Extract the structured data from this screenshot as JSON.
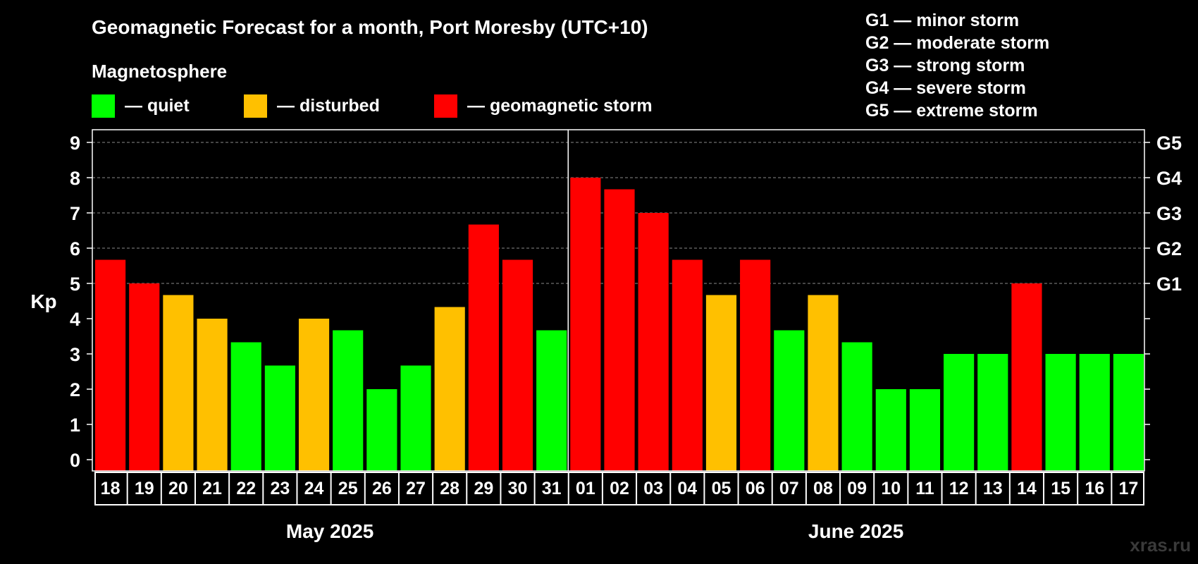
{
  "chart_data": {
    "type": "bar",
    "title": "Geomagnetic Forecast for a month, Port Moresby (UTC+10)",
    "ylabel": "Kp",
    "ylim": [
      0,
      9
    ],
    "yticks": [
      "0",
      "1",
      "2",
      "3",
      "4",
      "5",
      "6",
      "7",
      "8",
      "9"
    ],
    "grid": true,
    "legend": {
      "heading": "Magnetosphere",
      "items": [
        {
          "label": "— quiet",
          "color": "#00ff00"
        },
        {
          "label": "— disturbed",
          "color": "#ffc000"
        },
        {
          "label": "— geomagnetic storm",
          "color": "#ff0000"
        }
      ]
    },
    "storm_scale": [
      {
        "label": "G1 — minor storm"
      },
      {
        "label": "G2 — moderate storm"
      },
      {
        "label": "G3 — strong storm"
      },
      {
        "label": "G4 — severe storm"
      },
      {
        "label": "G5 — extreme storm"
      }
    ],
    "right_axis": [
      {
        "kp": 5,
        "label": "G1"
      },
      {
        "kp": 6,
        "label": "G2"
      },
      {
        "kp": 7,
        "label": "G3"
      },
      {
        "kp": 8,
        "label": "G4"
      },
      {
        "kp": 9,
        "label": "G5"
      }
    ],
    "months": [
      {
        "label": "May 2025",
        "start": 0,
        "end": 14
      },
      {
        "label": "June 2025",
        "start": 14,
        "end": 31
      }
    ],
    "colors": {
      "quiet": "#00ff00",
      "disturbed": "#ffc000",
      "storm": "#ff0000"
    },
    "categories": [
      "18",
      "19",
      "20",
      "21",
      "22",
      "23",
      "24",
      "25",
      "26",
      "27",
      "28",
      "29",
      "30",
      "31",
      "01",
      "02",
      "03",
      "04",
      "05",
      "06",
      "07",
      "08",
      "09",
      "10",
      "11",
      "12",
      "13",
      "14",
      "15",
      "16",
      "17"
    ],
    "values": [
      5.67,
      5,
      4.67,
      4,
      3.33,
      2.67,
      4,
      3.67,
      2,
      2.67,
      4.33,
      6.67,
      5.67,
      3.67,
      8,
      7.67,
      7,
      5.67,
      4.67,
      5.67,
      3.67,
      4.67,
      3.33,
      2,
      2,
      3,
      3,
      5,
      3,
      3,
      3
    ],
    "levels": [
      "storm",
      "storm",
      "disturbed",
      "disturbed",
      "quiet",
      "quiet",
      "disturbed",
      "quiet",
      "quiet",
      "quiet",
      "disturbed",
      "storm",
      "storm",
      "quiet",
      "storm",
      "storm",
      "storm",
      "storm",
      "disturbed",
      "storm",
      "quiet",
      "disturbed",
      "quiet",
      "quiet",
      "quiet",
      "quiet",
      "quiet",
      "storm",
      "quiet",
      "quiet",
      "quiet"
    ]
  },
  "watermark": "xras.ru"
}
